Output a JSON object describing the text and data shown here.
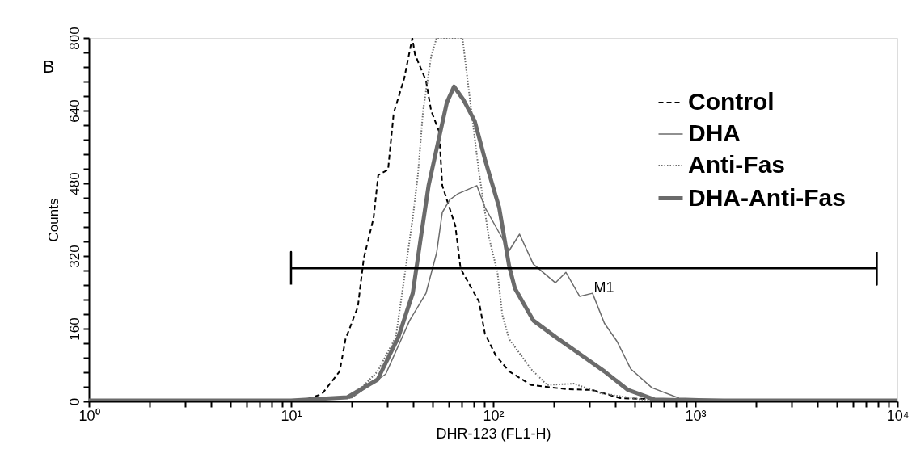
{
  "chart_data": {
    "type": "line",
    "xlabel": "DHR-123 (FL1-H)",
    "ylabel": "Counts",
    "log": "x",
    "xlim": [
      1,
      10000
    ],
    "ylim": [
      0,
      800
    ],
    "xticks": [
      {
        "value": 1,
        "label": "10⁰"
      },
      {
        "value": 2,
        "label": null
      },
      {
        "value": 3,
        "label": null
      },
      {
        "value": 4,
        "label": null
      },
      {
        "value": 5,
        "label": null
      },
      {
        "value": 6,
        "label": null
      },
      {
        "value": 7,
        "label": null
      },
      {
        "value": 8,
        "label": null
      },
      {
        "value": 9,
        "label": null
      },
      {
        "value": 10,
        "label": "10¹"
      },
      {
        "value": 20,
        "label": null
      },
      {
        "value": 30,
        "label": null
      },
      {
        "value": 40,
        "label": null
      },
      {
        "value": 50,
        "label": null
      },
      {
        "value": 60,
        "label": null
      },
      {
        "value": 70,
        "label": null
      },
      {
        "value": 80,
        "label": null
      },
      {
        "value": 90,
        "label": null
      },
      {
        "value": 100,
        "label": "10²"
      },
      {
        "value": 200,
        "label": null
      },
      {
        "value": 300,
        "label": null
      },
      {
        "value": 400,
        "label": null
      },
      {
        "value": 500,
        "label": null
      },
      {
        "value": 600,
        "label": null
      },
      {
        "value": 700,
        "label": null
      },
      {
        "value": 800,
        "label": null
      },
      {
        "value": 900,
        "label": null
      },
      {
        "value": 1000,
        "label": "10³"
      },
      {
        "value": 2000,
        "label": null
      },
      {
        "value": 3000,
        "label": null
      },
      {
        "value": 4000,
        "label": null
      },
      {
        "value": 5000,
        "label": null
      },
      {
        "value": 6000,
        "label": null
      },
      {
        "value": 7000,
        "label": null
      },
      {
        "value": 8000,
        "label": null
      },
      {
        "value": 9000,
        "label": null
      },
      {
        "value": 10000,
        "label": "10⁴"
      }
    ],
    "yticks": [
      0,
      {
        "value": 32,
        "label": null
      },
      {
        "value": 64,
        "label": null
      },
      {
        "value": 96,
        "label": null
      },
      {
        "value": 128,
        "label": null
      },
      160,
      {
        "value": 192,
        "label": null
      },
      {
        "value": 224,
        "label": null
      },
      {
        "value": 256,
        "label": null
      },
      {
        "value": 288,
        "label": null
      },
      320,
      {
        "value": 352,
        "label": null
      },
      {
        "value": 384,
        "label": null
      },
      {
        "value": 416,
        "label": null
      },
      {
        "value": 448,
        "label": null
      },
      480,
      {
        "value": 512,
        "label": null
      },
      {
        "value": 544,
        "label": null
      },
      {
        "value": 576,
        "label": null
      },
      {
        "value": 608,
        "label": null
      },
      640,
      {
        "value": 672,
        "label": null
      },
      {
        "value": 704,
        "label": null
      },
      {
        "value": 736,
        "label": null
      },
      {
        "value": 768,
        "label": null
      },
      800
    ],
    "grid": false,
    "legend": "top right",
    "marker": "none",
    "series": [
      {
        "name": "Control",
        "color": "#000000",
        "line_style": "dashed",
        "x": [
          1,
          5,
          10,
          12,
          14.2,
          17.4,
          18.6,
          21.4,
          22.9,
          25.6,
          27,
          30.2,
          32.2,
          36.3,
          39.8,
          41,
          46.5,
          49.3,
          54,
          56,
          65,
          69,
          85,
          91,
          103,
          120,
          154,
          229,
          310,
          425,
          1000,
          10000
        ],
        "values": [
          2,
          2,
          3,
          5,
          16,
          66,
          137,
          208,
          315,
          404,
          498,
          510,
          635,
          711,
          800,
          764,
          706,
          640,
          594,
          475,
          386,
          292,
          220,
          149,
          101,
          66,
          36,
          27,
          25,
          7,
          2,
          2
        ]
      },
      {
        "name": "DHA",
        "color": "#6b6b6b",
        "line_style": "solid",
        "x": [
          1,
          10,
          20,
          29.4,
          38.6,
          46.5,
          52.5,
          56,
          61,
          67,
          83,
          91,
          94,
          120,
          135,
          158,
          203,
          229,
          268,
          310,
          355,
          410,
          480,
          610,
          830,
          2000,
          10000
        ],
        "values": [
          2,
          2,
          8,
          60,
          178,
          238,
          327,
          416,
          444,
          457,
          475,
          427,
          416,
          332,
          368,
          302,
          261,
          284,
          231,
          238,
          172,
          132,
          71,
          30,
          7,
          2,
          2
        ]
      },
      {
        "name": "Anti-Fas",
        "color": "#6b6b6b",
        "line_style": "dotted",
        "x": [
          1,
          10,
          20,
          26.8,
          33,
          37,
          40,
          42.4,
          45,
          49.3,
          52.5,
          70.5,
          74.5,
          85,
          95,
          105,
          111,
          120,
          154,
          185,
          250,
          340,
          540,
          1000,
          10000
        ],
        "values": [
          2,
          2,
          8,
          66,
          142,
          297,
          404,
          498,
          640,
          759,
          800,
          800,
          711,
          505,
          363,
          284,
          190,
          137,
          71,
          36,
          39,
          18,
          4,
          2,
          2
        ]
      },
      {
        "name": "DHA-Anti-Fas",
        "color": "#6b6b6b",
        "line_style": "solid",
        "x": [
          1,
          10,
          19,
          26.8,
          34,
          40,
          43.7,
          47.9,
          54,
          59,
          64,
          71,
          81,
          91,
          107,
          120,
          128,
          158,
          203,
          275,
          355,
          465,
          630,
          1000,
          10000
        ],
        "values": [
          2,
          2,
          9,
          48,
          142,
          238,
          356,
          475,
          581,
          658,
          693,
          665,
          617,
          533,
          427,
          297,
          249,
          178,
          142,
          101,
          66,
          25,
          4,
          2,
          2
        ]
      },
      {
        "color": "#000000",
        "line_style": "solid",
        "x": [
          10,
          10,
          10,
          7900,
          7900,
          7900
        ],
        "values": [
          257,
          329,
          293,
          293,
          257,
          329
        ]
      }
    ],
    "annotations": [
      "B",
      "M1"
    ]
  }
}
